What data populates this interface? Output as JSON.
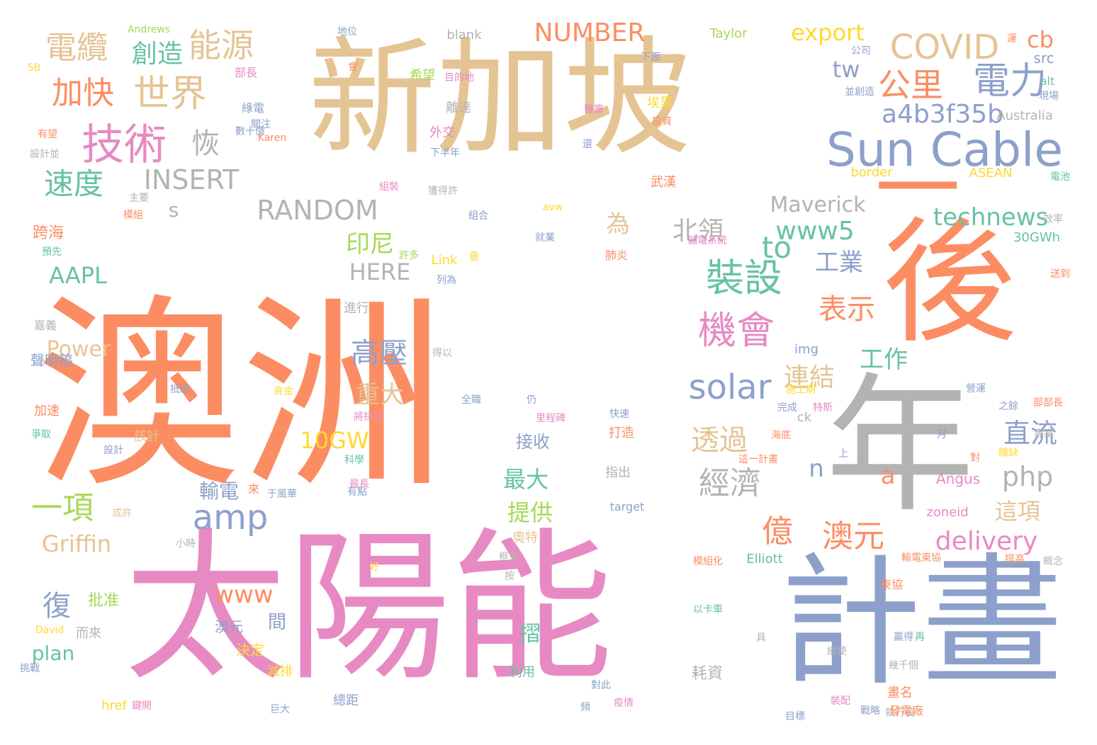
{
  "palette": {
    "orange": "#fc8d62",
    "tan": "#e5c494",
    "pink": "#e78ac3",
    "blue": "#8da0cb",
    "gray": "#b3b3b3",
    "green": "#66c2a5",
    "lime": "#a6d854",
    "yellow": "#ffd92f"
  },
  "words": [
    {
      "text": "澳洲",
      "c": "orange"
    },
    {
      "text": "太陽能",
      "c": "pink"
    },
    {
      "text": "新加坡",
      "c": "tan"
    },
    {
      "text": "年",
      "c": "gray"
    },
    {
      "text": "後",
      "c": "orange"
    },
    {
      "text": "計畫",
      "c": "blue"
    },
    {
      "text": "一",
      "c": "orange"
    },
    {
      "text": "Sun Cable",
      "c": "blue"
    },
    {
      "text": "COVID",
      "c": "tan"
    },
    {
      "text": "電力",
      "c": "blue"
    },
    {
      "text": "公里",
      "c": "orange"
    },
    {
      "text": "a4b3f35b",
      "c": "blue"
    },
    {
      "text": "技術",
      "c": "pink"
    },
    {
      "text": "世界",
      "c": "tan"
    },
    {
      "text": "能源",
      "c": "tan"
    },
    {
      "text": "電纜",
      "c": "tan"
    },
    {
      "text": "創造",
      "c": "green"
    },
    {
      "text": "加快",
      "c": "orange"
    },
    {
      "text": "速度",
      "c": "green"
    },
    {
      "text": "恢",
      "c": "gray"
    },
    {
      "text": "INSERT",
      "c": "gray"
    },
    {
      "text": "RANDOM",
      "c": "gray"
    },
    {
      "text": "NUMBER",
      "c": "orange"
    },
    {
      "text": "export",
      "c": "yellow"
    },
    {
      "text": "cb",
      "c": "orange"
    },
    {
      "text": "tw",
      "c": "blue"
    },
    {
      "text": "technews",
      "c": "green"
    },
    {
      "text": "www5",
      "c": "green"
    },
    {
      "text": "Maverick",
      "c": "gray"
    },
    {
      "text": "to",
      "c": "green"
    },
    {
      "text": "北領",
      "c": "gray"
    },
    {
      "text": "為",
      "c": "tan"
    },
    {
      "text": "印尼",
      "c": "lime"
    },
    {
      "text": "HERE",
      "c": "gray"
    },
    {
      "text": "s",
      "c": "gray"
    },
    {
      "text": "裝設",
      "c": "green"
    },
    {
      "text": "工業",
      "c": "blue"
    },
    {
      "text": "表示",
      "c": "orange"
    },
    {
      "text": "機會",
      "c": "pink"
    },
    {
      "text": "solar",
      "c": "blue"
    },
    {
      "text": "高壓",
      "c": "blue"
    },
    {
      "text": "重大",
      "c": "tan"
    },
    {
      "text": "連結",
      "c": "tan"
    },
    {
      "text": "工作",
      "c": "green"
    },
    {
      "text": "直流",
      "c": "blue"
    },
    {
      "text": "透過",
      "c": "tan"
    },
    {
      "text": "經濟",
      "c": "gray"
    },
    {
      "text": "n",
      "c": "blue"
    },
    {
      "text": "a",
      "c": "orange"
    },
    {
      "text": "php",
      "c": "gray"
    },
    {
      "text": "億",
      "c": "orange"
    },
    {
      "text": "澳元",
      "c": "orange"
    },
    {
      "text": "delivery",
      "c": "pink"
    },
    {
      "text": "這項",
      "c": "tan"
    },
    {
      "text": "amp",
      "c": "blue"
    },
    {
      "text": "AAPL",
      "c": "green"
    },
    {
      "text": "Power",
      "c": "tan"
    },
    {
      "text": "Griffin",
      "c": "tan"
    },
    {
      "text": "一項",
      "c": "lime"
    },
    {
      "text": "10GW",
      "c": "yellow"
    },
    {
      "text": "www",
      "c": "orange"
    },
    {
      "text": "輸電",
      "c": "blue"
    },
    {
      "text": "最大",
      "c": "green"
    },
    {
      "text": "提供",
      "c": "lime"
    },
    {
      "text": "接收",
      "c": "blue"
    },
    {
      "text": "復",
      "c": "blue"
    },
    {
      "text": "批准",
      "c": "lime"
    },
    {
      "text": "plan",
      "c": "green"
    },
    {
      "text": "澳元",
      "c": "blue"
    },
    {
      "text": "間",
      "c": "blue"
    },
    {
      "text": "決定",
      "c": "yellow"
    },
    {
      "text": "摺",
      "c": "green"
    },
    {
      "text": "耗資",
      "c": "gray"
    },
    {
      "text": "跨海",
      "c": "orange"
    },
    {
      "text": "Andrews",
      "c": "lime"
    },
    {
      "text": "地位",
      "c": "blue"
    },
    {
      "text": "blank",
      "c": "gray"
    },
    {
      "text": "Taylor",
      "c": "lime"
    },
    {
      "text": "部長",
      "c": "pink"
    },
    {
      "text": "綠電",
      "c": "blue"
    },
    {
      "text": "希望",
      "c": "lime"
    },
    {
      "text": "目的地",
      "c": "pink"
    },
    {
      "text": "離達",
      "c": "gray"
    },
    {
      "text": "外交",
      "c": "pink"
    },
    {
      "text": "下半年",
      "c": "blue"
    },
    {
      "text": "下面",
      "c": "blue"
    },
    {
      "text": "埃里",
      "c": "yellow"
    },
    {
      "text": "投資",
      "c": "orange"
    },
    {
      "text": "武漢",
      "c": "orange"
    },
    {
      "text": "Australia",
      "c": "gray"
    },
    {
      "text": "src",
      "c": "blue"
    },
    {
      "text": "alt",
      "c": "green"
    },
    {
      "text": "現場",
      "c": "blue"
    },
    {
      "text": "border",
      "c": "yellow"
    },
    {
      "text": "ASEAN",
      "c": "yellow"
    },
    {
      "text": "電池",
      "c": "green"
    },
    {
      "text": "效率",
      "c": "gray"
    },
    {
      "text": "30GWh",
      "c": "green"
    },
    {
      "text": "送到",
      "c": "orange"
    },
    {
      "text": "儲電系統",
      "c": "pink"
    },
    {
      "text": "肺炎",
      "c": "orange"
    },
    {
      "text": "Link",
      "c": "yellow"
    },
    {
      "text": "avw",
      "c": "yellow"
    },
    {
      "text": "就業",
      "c": "blue"
    },
    {
      "text": "獲得許",
      "c": "gray"
    },
    {
      "text": "組合",
      "c": "blue"
    },
    {
      "text": "主要",
      "c": "gray"
    },
    {
      "text": "模組",
      "c": "orange"
    },
    {
      "text": "預先",
      "c": "green"
    },
    {
      "text": "許多",
      "c": "lime"
    },
    {
      "text": "列為",
      "c": "blue"
    },
    {
      "text": "進行",
      "c": "gray"
    },
    {
      "text": "嘉義",
      "c": "gray"
    },
    {
      "text": "聲明稿",
      "c": "blue"
    },
    {
      "text": "抵達",
      "c": "blue"
    },
    {
      "text": "資金",
      "c": "yellow"
    },
    {
      "text": "加速",
      "c": "orange"
    },
    {
      "text": "爭取",
      "c": "green"
    },
    {
      "text": "該計",
      "c": "tan"
    },
    {
      "text": "設計",
      "c": "blue"
    },
    {
      "text": "而來",
      "c": "gray"
    },
    {
      "text": "挑戰",
      "c": "blue"
    },
    {
      "text": "David",
      "c": "yellow"
    },
    {
      "text": "href",
      "c": "yellow"
    },
    {
      "text": "鍵開",
      "c": "pink"
    },
    {
      "text": "巨大",
      "c": "blue"
    },
    {
      "text": "減排",
      "c": "yellow"
    },
    {
      "text": "總距",
      "c": "blue"
    },
    {
      "text": "目標",
      "c": "blue"
    },
    {
      "text": "裝配",
      "c": "pink"
    },
    {
      "text": "執行長",
      "c": "gray"
    },
    {
      "text": "疫情",
      "c": "pink"
    },
    {
      "text": "利用",
      "c": "green"
    },
    {
      "text": "對此",
      "c": "blue"
    },
    {
      "text": "Angus",
      "c": "pink"
    },
    {
      "text": "zoneid",
      "c": "pink"
    },
    {
      "text": "Elliott",
      "c": "green"
    },
    {
      "text": "img",
      "c": "blue"
    },
    {
      "text": "ck",
      "c": "gray"
    },
    {
      "text": "target",
      "c": "blue"
    },
    {
      "text": "小時",
      "c": "gray"
    },
    {
      "text": "指出",
      "c": "gray"
    },
    {
      "text": "奧特",
      "c": "tan"
    },
    {
      "text": "框架",
      "c": "gray"
    },
    {
      "text": "輸電東協",
      "c": "orange"
    },
    {
      "text": "東協",
      "c": "orange"
    },
    {
      "text": "畫名",
      "c": "orange"
    },
    {
      "text": "發電廠",
      "c": "orange"
    },
    {
      "text": "戰略",
      "c": "blue"
    },
    {
      "text": "來",
      "c": "orange"
    },
    {
      "text": "最長",
      "c": "pink"
    },
    {
      "text": "科學",
      "c": "green"
    },
    {
      "text": "打造",
      "c": "orange"
    },
    {
      "text": "快速",
      "c": "blue"
    },
    {
      "text": "全職",
      "c": "blue"
    },
    {
      "text": "仍",
      "c": "blue"
    },
    {
      "text": "里程碑",
      "c": "pink"
    },
    {
      "text": "得以",
      "c": "gray"
    },
    {
      "text": "將採用",
      "c": "pink"
    },
    {
      "text": "之餘",
      "c": "blue"
    },
    {
      "text": "營運",
      "c": "blue"
    },
    {
      "text": "部部長",
      "c": "orange"
    },
    {
      "text": "模組化",
      "c": "orange"
    },
    {
      "text": "以卡車",
      "c": "green"
    },
    {
      "text": "提高",
      "c": "orange"
    },
    {
      "text": "概念",
      "c": "gray"
    },
    {
      "text": "專案",
      "c": "gray"
    },
    {
      "text": "職缺",
      "c": "yellow"
    },
    {
      "text": "月",
      "c": "blue"
    },
    {
      "text": "上",
      "c": "blue"
    },
    {
      "text": "海底",
      "c": "orange"
    },
    {
      "text": "施工期",
      "c": "yellow"
    },
    {
      "text": "特斯",
      "c": "pink"
    },
    {
      "text": "完成",
      "c": "blue"
    },
    {
      "text": "這一計畫",
      "c": "orange"
    },
    {
      "text": "贏得",
      "c": "blue"
    },
    {
      "text": "縱使",
      "c": "gray"
    },
    {
      "text": "幾千個",
      "c": "gray"
    },
    {
      "text": "具",
      "c": "gray"
    },
    {
      "text": "再",
      "c": "green"
    },
    {
      "text": "公司",
      "c": "blue"
    },
    {
      "text": "並創造",
      "c": "blue"
    },
    {
      "text": "有望",
      "c": "orange"
    },
    {
      "text": "設計並",
      "c": "gray"
    },
    {
      "text": "數十億",
      "c": "blue"
    },
    {
      "text": "Karen",
      "c": "orange"
    },
    {
      "text": "5B",
      "c": "yellow"
    },
    {
      "text": "關注",
      "c": "blue"
    },
    {
      "text": "醫審",
      "c": "pink"
    },
    {
      "text": "還",
      "c": "blue"
    },
    {
      "text": "有點",
      "c": "blue"
    },
    {
      "text": "于風華",
      "c": "blue"
    },
    {
      "text": "或許",
      "c": "tan"
    },
    {
      "text": "好",
      "c": "yellow"
    },
    {
      "text": "按",
      "c": "gray"
    },
    {
      "text": "頻",
      "c": "blue"
    },
    {
      "text": "組裝",
      "c": "pink"
    },
    {
      "text": "運",
      "c": "orange"
    },
    {
      "text": "會",
      "c": "orange"
    },
    {
      "text": "疊",
      "c": "yellow"
    },
    {
      "text": "對",
      "c": "orange"
    }
  ]
}
